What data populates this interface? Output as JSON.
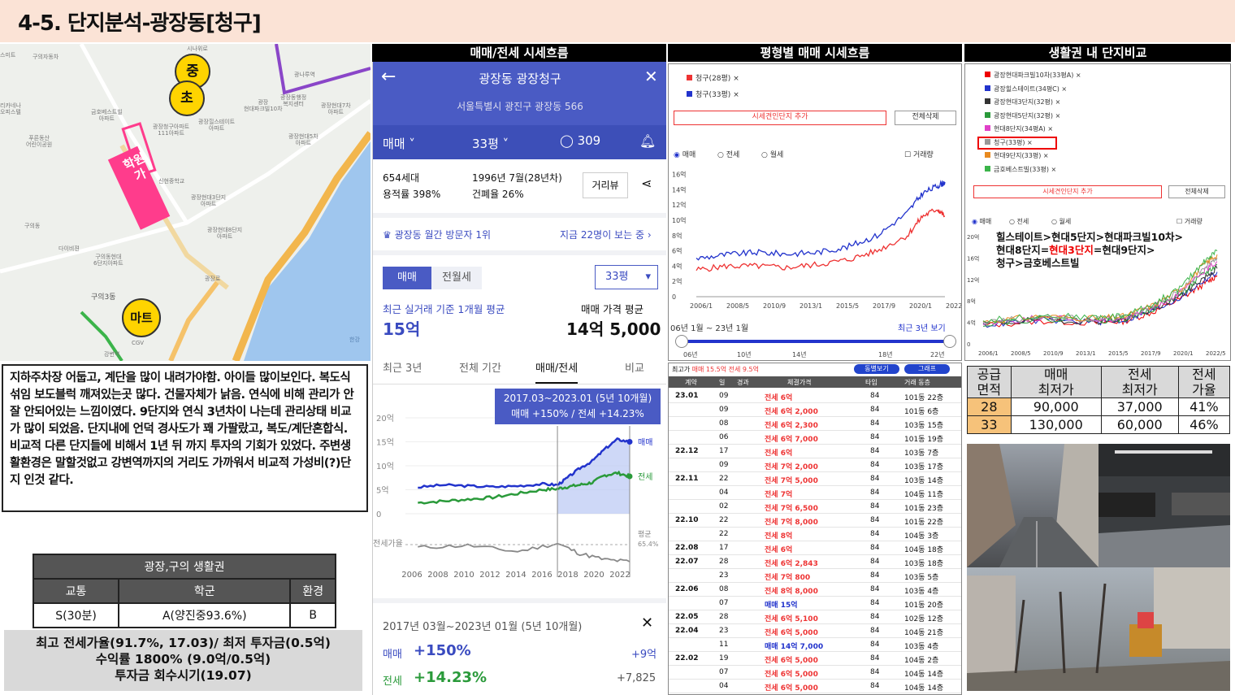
{
  "title": "4-5. 단지분석-광장동[청구]",
  "map": {
    "markers": [
      "중",
      "초",
      "마트"
    ],
    "academy_label": "학원가",
    "labels": [
      "시나위로",
      "스미트",
      "구의자동차",
      "광나루역",
      "리카네나\n오피스텔",
      "광장동행정\n복지센터",
      "금호베스트빌\n아파트",
      "광장\n현대파크빌10차",
      "광장현대7차\n아파트",
      "푸른동산\n어린이공원",
      "광장청구아파트\n111아파트",
      "광장힐스테이트\n아파트",
      "광장현대5차\n아파트",
      "광장현대3단지\n아파트",
      "다이비젼",
      "구의동현대\n6단지아파트",
      "광장현대8단지\n아파트",
      "구의3동",
      "구의동",
      "광장로",
      "한강",
      "강변역",
      "CGV",
      "신현중학교"
    ]
  },
  "description": "지하주차장 어둡고, 계단을 많이 내려가야함. 아이들 많이보인다. 복도식 섞임 보도블럭 깨져있는곳 많다. 건물자체가 낡음. 연식에 비해 관리가 안 잘 안되어있는 느낌이였다. 9단지와 연식 3년차이 나는데 관리상태 비교가 많이 되었음. 단지내에 언덕 경사도가 꽤 가팔랐고, 복도/계단혼합식. 비교적 다른 단지들에 비해서 1년 뒤 까지 투자의 기회가 있었다. 주변생활환경은 말할것없고 강변역까지의 거리도 가까워서 비교적 가성비(?)단지 인것 같다.",
  "life_table": {
    "title": "광장,구의 생활권",
    "headers": [
      "교통",
      "학군",
      "환경"
    ],
    "values": [
      "S(30분)",
      "A(양진중93.6%)",
      "B"
    ]
  },
  "summary": [
    "최고 전세가율(91.7%, 17.03)/ 최저 투자금(0.5억)",
    "수익률 1800% (9.0억/0.5억)",
    "투자금 회수시기(19.07)"
  ],
  "section_headers": [
    "매매/전세 시세흐름",
    "평형별 매매 시세흐름",
    "생활권 내 단지비교"
  ],
  "app": {
    "back_icon": "back-arrow-icon",
    "title": "광장동 광장청구",
    "address": "서울특별시 광진구 광장동 566",
    "trade_type": "매매",
    "size": "33평",
    "comments": "309",
    "households": "654세대",
    "far": "용적률 398%",
    "built": "1996년 7월(28년차)",
    "bcr": "건폐율 26%",
    "street_view": "거리뷰",
    "visitor_rank": "광장동 월간 방문자 1위",
    "now_viewing": "지금 22명이 보는 중",
    "seg": [
      "매매",
      "전월세"
    ],
    "size_select": "33평",
    "avg_label": "최근 실거래 기준 1개월 평균",
    "avg_value": "15억",
    "ask_label": "매매 가격 평균",
    "ask_value": "14억 5,000",
    "tabs": [
      "최근 3년",
      "전체 기간",
      "매매/전세",
      "비교"
    ],
    "tooltip_title": "2017.03~2023.01 (5년 10개월)",
    "tooltip_sale": "매매 +150%",
    "tooltip_sep": "/",
    "tooltip_jeonse": "전세 +14.23%",
    "y_ticks": [
      "20억",
      "15억",
      "10억",
      "5억",
      "0"
    ],
    "series_labels": [
      "매매",
      "전세"
    ],
    "ratio_label": "전세가율",
    "ratio_right": "평균",
    "ratio_value": "65.4%",
    "x_ticks": [
      "2006",
      "2008",
      "2010",
      "2012",
      "2014",
      "2016",
      "2018",
      "2020",
      "2022"
    ],
    "period": "2017년 03월~2023년 01월 (5년 10개월)",
    "sale_row": [
      "매매",
      "+150%",
      "+9억"
    ],
    "jeonse_row": [
      "전세",
      "+14.23%",
      "+7,825"
    ]
  },
  "chart_data": [
    {
      "type": "line",
      "title": "",
      "x": [
        2006,
        2008,
        2010,
        2012,
        2014,
        2016,
        2017.2,
        2018,
        2019,
        2020,
        2021,
        2022,
        2023
      ],
      "series": [
        {
          "name": "매매",
          "values": [
            5.5,
            6.0,
            5.8,
            5.6,
            5.8,
            6.2,
            6.0,
            7.5,
            9.5,
            11.0,
            13.5,
            15.5,
            15.0
          ]
        },
        {
          "name": "전세",
          "values": [
            2.3,
            2.6,
            3.0,
            3.4,
            4.2,
            5.0,
            5.2,
            5.6,
            6.0,
            6.5,
            8.0,
            8.5,
            7.8
          ]
        }
      ],
      "ylim": [
        0,
        20
      ],
      "ylabel": ""
    },
    {
      "type": "line",
      "legend": [
        "청구(28평)",
        "청구(33평)"
      ],
      "x": [
        2006,
        2008,
        2010,
        2012,
        2014,
        2016,
        2018,
        2020,
        2021,
        2022,
        2022.5
      ],
      "series": [
        {
          "name": "청구(28평)",
          "values": [
            3.5,
            4.0,
            4.0,
            3.8,
            4.2,
            4.8,
            6.0,
            8.0,
            10.5,
            11.5,
            10.5
          ]
        },
        {
          "name": "청구(33평)",
          "values": [
            5.0,
            5.5,
            5.8,
            5.6,
            5.8,
            6.5,
            8.0,
            11.0,
            13.5,
            14.5,
            15.0
          ]
        }
      ],
      "ylim": [
        0,
        16
      ],
      "y_ticks": [
        "16억",
        "14억",
        "12억",
        "10억",
        "8억",
        "6억",
        "4억",
        "2억",
        "0"
      ],
      "x_ticks": [
        "2006/1",
        "2008/5",
        "2010/9",
        "2013/1",
        "2015/5",
        "2017/9",
        "2020/1",
        "2022/5"
      ]
    },
    {
      "type": "line",
      "legend": [
        "광장현대파크빌10차(33평A)",
        "광장힐스테이트(34평C)",
        "광장현대3단지(32평)",
        "광장현대5단지(32평)",
        "현대8단지(34평A)",
        "청구(33평)",
        "현대9단지(33평)",
        "금호베스트빌(33평)"
      ],
      "annotation": [
        "힐스테이트>현대5단지>현대파크빌10차>",
        "현대8단지=",
        "현대3단지",
        "=현대9단지>",
        "청구>금호베스트빌"
      ],
      "ylim": [
        0,
        20
      ],
      "y_ticks": [
        "20억",
        "16억",
        "12억",
        "8억",
        "4억",
        "0"
      ],
      "x_ticks": [
        "2006/1",
        "2008/5",
        "2010/9",
        "2013/1",
        "2015/5",
        "2017/9",
        "2020/1",
        "2022/5"
      ]
    }
  ],
  "chart_panel": {
    "add_btn": "시세견인단지 추가",
    "del_btn": "전체삭제",
    "radio": [
      "매매",
      "전세",
      "월세"
    ],
    "check": "거래량",
    "range_label": "06년 1월 ~ 23년 1월",
    "range_link": "최근 3년 보기",
    "range_ticks": [
      "06년",
      "10년",
      "14년",
      "18년",
      "22년"
    ]
  },
  "transactions": {
    "top": [
      "최고가",
      "매매 15.5억",
      "전세 9.5억",
      "동별보기",
      "그래프"
    ],
    "headers": [
      "계약",
      "일",
      "경과",
      "체결가격",
      "타입",
      "거래 동층"
    ],
    "rows": [
      [
        "23.01",
        "09",
        "",
        "전세 6억",
        "84",
        "101동 22층"
      ],
      [
        "",
        "09",
        "",
        "전세 6억 2,000",
        "84",
        "101동 6층"
      ],
      [
        "",
        "08",
        "",
        "전세 6억 2,300",
        "84",
        "103동 15층"
      ],
      [
        "",
        "06",
        "",
        "전세 6억 7,000",
        "84",
        "101동 19층"
      ],
      [
        "22.12",
        "17",
        "",
        "전세 6억",
        "84",
        "103동 7층"
      ],
      [
        "",
        "09",
        "",
        "전세 7억 2,000",
        "84",
        "103동 17층"
      ],
      [
        "22.11",
        "22",
        "",
        "전세 7억 5,000",
        "84",
        "103동 14층"
      ],
      [
        "",
        "04",
        "",
        "전세 7억",
        "84",
        "104동 11층"
      ],
      [
        "",
        "02",
        "",
        "전세 7억 6,500",
        "84",
        "101동 23층"
      ],
      [
        "22.10",
        "22",
        "",
        "전세 7억 8,000",
        "84",
        "101동 22층"
      ],
      [
        "",
        "22",
        "",
        "전세 8억",
        "84",
        "104동 3층"
      ],
      [
        "22.08",
        "17",
        "",
        "전세 6억",
        "84",
        "104동 18층"
      ],
      [
        "22.07",
        "28",
        "",
        "전세 6억 2,843",
        "84",
        "103동 18층"
      ],
      [
        "",
        "23",
        "",
        "전세 7억 800",
        "84",
        "103동 5층"
      ],
      [
        "22.06",
        "08",
        "",
        "전세 8억 8,000",
        "84",
        "103동 4층"
      ],
      [
        "",
        "07",
        "",
        "매매 15억",
        "84",
        "101동 20층"
      ],
      [
        "22.05",
        "28",
        "",
        "전세 6억 5,100",
        "84",
        "102동 12층"
      ],
      [
        "22.04",
        "23",
        "",
        "전세 6억 5,000",
        "84",
        "104동 21층"
      ],
      [
        "",
        "11",
        "",
        "매매 14억 7,000",
        "84",
        "103동 4층"
      ],
      [
        "22.02",
        "19",
        "",
        "전세 6억 5,000",
        "84",
        "104동 2층"
      ],
      [
        "",
        "07",
        "",
        "전세 6억 5,000",
        "84",
        "104동 14층"
      ],
      [
        "",
        "04",
        "",
        "전세 6억 5,000",
        "84",
        "104동 14층"
      ]
    ]
  },
  "price_table": {
    "headers": [
      [
        "공급",
        "면적"
      ],
      [
        "매매",
        "최저가"
      ],
      [
        "전세",
        "최저가"
      ],
      [
        "전세",
        "가율"
      ]
    ],
    "rows": [
      [
        "28",
        "90,000",
        "37,000",
        "41%"
      ],
      [
        "33",
        "130,000",
        "60,000",
        "46%"
      ]
    ]
  },
  "colors": {
    "header_bg": "#fbe3d6",
    "app_blue": "#4a5bc4",
    "sale_blue": "#2233cc",
    "jeonse_green": "#2a9a3a",
    "red": "#e33",
    "highlight_row": "#f6c27a",
    "summary_bg": "#d9d9d9"
  }
}
